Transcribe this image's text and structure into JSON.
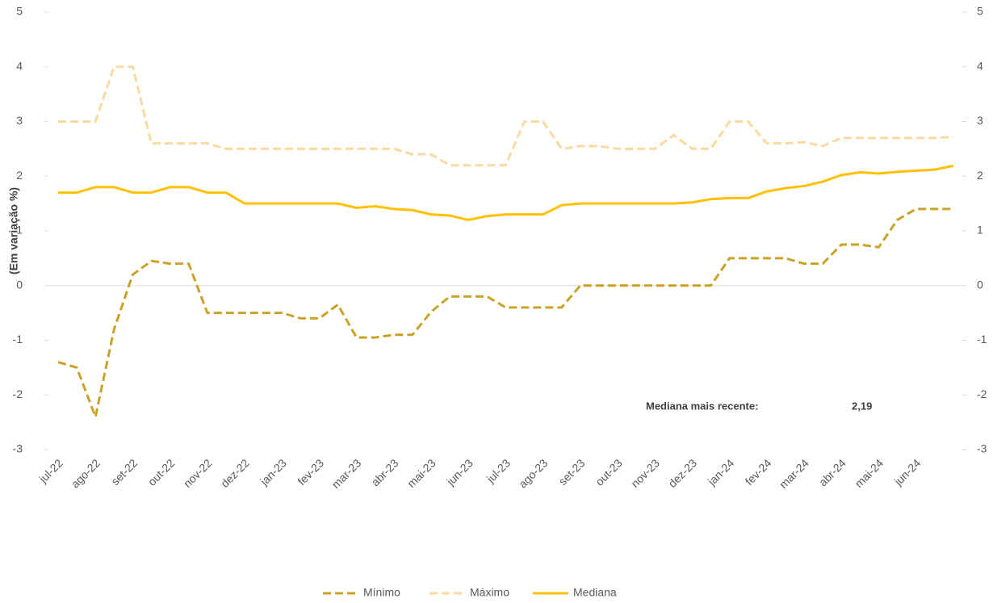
{
  "chart_data": {
    "type": "line",
    "y_label": "(Em variação %)",
    "annotations": [
      "Mediana mais recente:",
      "2,19"
    ],
    "categories": [
      "jul-22",
      null,
      "ago-22",
      null,
      "set-22",
      null,
      "out-22",
      null,
      "nov-22",
      null,
      "dez-22",
      null,
      "jan-23",
      null,
      "fev-23",
      null,
      "mar-23",
      null,
      "abr-23",
      null,
      "mai-23",
      null,
      "jun-23",
      null,
      "jul-23",
      null,
      "ago-23",
      null,
      "set-23",
      null,
      "out-23",
      null,
      "nov-23",
      null,
      "dez-23",
      null,
      "jan-24",
      null,
      "fev-24",
      null,
      "mar-24",
      null,
      "abr-24",
      null,
      "mai-24",
      null,
      "jun-24",
      null,
      null
    ],
    "series": [
      {
        "name": "Mínimo",
        "color": "#c9a227",
        "dash": true,
        "values": [
          -1.4,
          -1.5,
          -2.4,
          -0.8,
          0.2,
          0.45,
          0.4,
          0.4,
          -0.5,
          -0.5,
          -0.5,
          -0.5,
          -0.5,
          -0.6,
          -0.6,
          -0.35,
          -0.95,
          -0.95,
          -0.9,
          -0.9,
          -0.48,
          -0.2,
          -0.2,
          -0.2,
          -0.4,
          -0.4,
          -0.4,
          -0.4,
          0,
          0,
          0,
          0,
          0,
          0,
          0,
          0,
          0.5,
          0.5,
          0.5,
          0.5,
          0.4,
          0.4,
          0.75,
          0.75,
          0.7,
          1.2,
          1.4,
          1.4,
          1.4
        ]
      },
      {
        "name": "Máximo",
        "color": "#fcd9a0",
        "dash": true,
        "values": [
          3.0,
          3.0,
          3.0,
          4.0,
          4.0,
          2.6,
          2.6,
          2.6,
          2.6,
          2.5,
          2.5,
          2.5,
          2.5,
          2.5,
          2.5,
          2.5,
          2.5,
          2.5,
          2.5,
          2.4,
          2.4,
          2.2,
          2.2,
          2.2,
          2.2,
          3.0,
          3.0,
          2.5,
          2.55,
          2.55,
          2.5,
          2.5,
          2.5,
          2.75,
          2.5,
          2.5,
          3.0,
          3.0,
          2.6,
          2.6,
          2.62,
          2.55,
          2.7,
          2.7,
          2.7,
          2.7,
          2.7,
          2.7,
          2.72
        ]
      },
      {
        "name": "Mediana",
        "color": "#ffc000",
        "dash": false,
        "values": [
          1.7,
          1.7,
          1.8,
          1.8,
          1.7,
          1.7,
          1.8,
          1.8,
          1.7,
          1.7,
          1.5,
          1.5,
          1.5,
          1.5,
          1.5,
          1.5,
          1.42,
          1.45,
          1.4,
          1.38,
          1.3,
          1.28,
          1.2,
          1.27,
          1.3,
          1.3,
          1.3,
          1.47,
          1.5,
          1.5,
          1.5,
          1.5,
          1.5,
          1.5,
          1.52,
          1.58,
          1.6,
          1.6,
          1.72,
          1.78,
          1.82,
          1.9,
          2.02,
          2.07,
          2.05,
          2.08,
          2.1,
          2.12,
          2.19
        ]
      }
    ],
    "ylim": [
      -3,
      5
    ],
    "yticks": [
      -3,
      -2,
      -1,
      0,
      1,
      2,
      3,
      4,
      5
    ],
    "y2lim": [
      -3,
      5
    ],
    "y2ticks": [
      -3,
      -2,
      -1,
      0,
      1,
      2,
      3,
      4,
      5
    ],
    "grid": false,
    "legend": "bottom"
  }
}
